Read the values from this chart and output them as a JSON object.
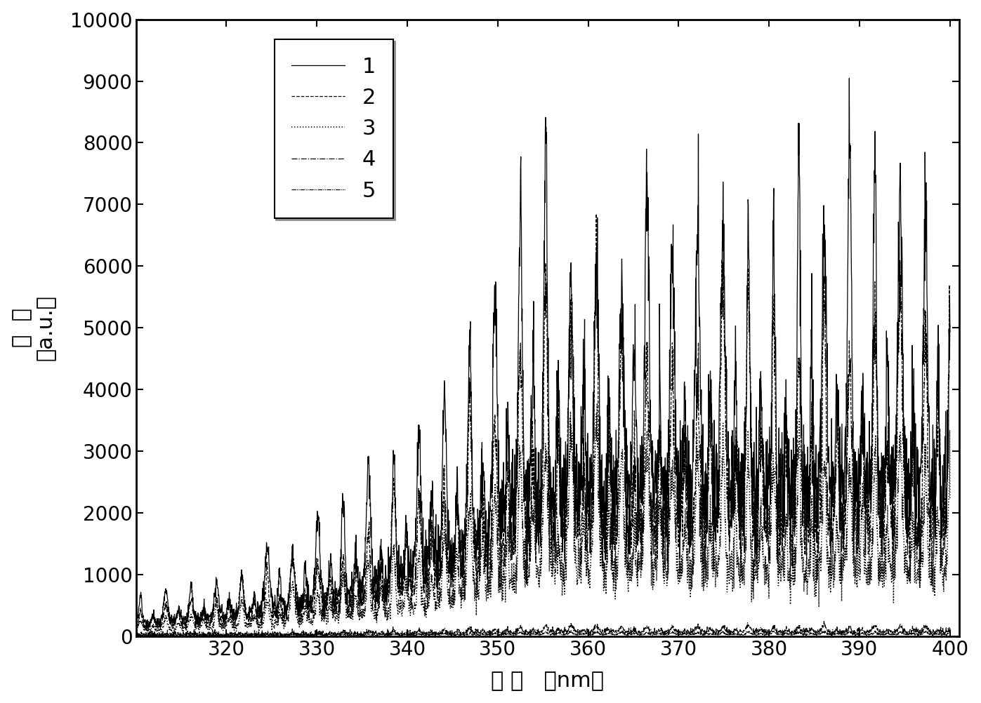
{
  "xlabel_parts": [
    "波 长",
    "  （nm）"
  ],
  "ylabel_line1": "强  度",
  "ylabel_line2": "（a.u.）",
  "xlim": [
    310,
    401
  ],
  "ylim": [
    0,
    10000
  ],
  "xticks": [
    320,
    330,
    340,
    350,
    360,
    370,
    380,
    390,
    400
  ],
  "yticks": [
    0,
    1000,
    2000,
    3000,
    4000,
    5000,
    6000,
    7000,
    8000,
    9000,
    10000
  ],
  "background_color": "#ffffff",
  "line_color": "#000000",
  "legend_labels": [
    "1",
    "2",
    "3",
    "4",
    "5"
  ],
  "x_start": 310,
  "x_end": 400,
  "n_points": 3000
}
